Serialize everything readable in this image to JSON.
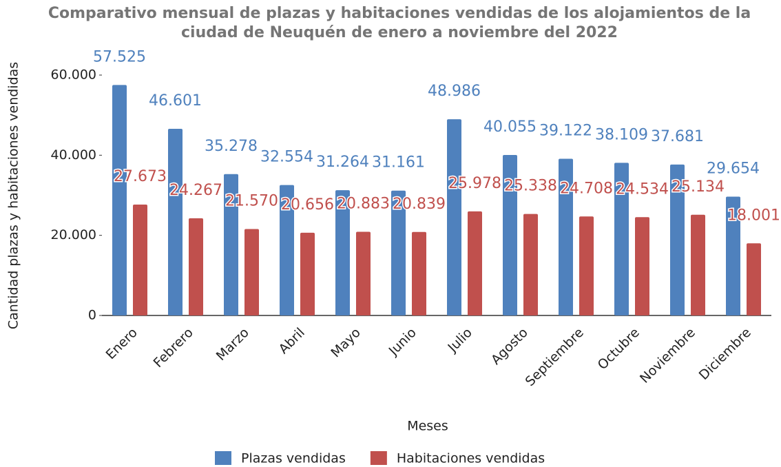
{
  "chart_data": {
    "type": "bar",
    "title": "Comparativo mensual de plazas y habitaciones vendidas de los alojamientos de la ciudad de Neuquén de enero a noviembre del 2022",
    "x_label": "Meses",
    "y_label": "Cantidad plazas y habitaciones vendidas",
    "categories": [
      "Enero",
      "Febrero",
      "Marzo",
      "Abril",
      "Mayo",
      "Junio",
      "Julio",
      "Agosto",
      "Septiembre",
      "Octubre",
      "Noviembre",
      "Diciembre"
    ],
    "series": [
      {
        "name": "Plazas vendidas",
        "color": "#4f81bd",
        "values": [
          57525,
          46601,
          35278,
          32554,
          31264,
          31161,
          48986,
          40055,
          39122,
          38109,
          37681,
          29654
        ],
        "value_labels": [
          "57.525",
          "46.601",
          "35.278",
          "32.554",
          "31.264",
          "31.161",
          "48.986",
          "40.055",
          "39.122",
          "38.109",
          "37.681",
          "29.654"
        ]
      },
      {
        "name": "Habitaciones vendidas",
        "color": "#c0504d",
        "values": [
          27673,
          24267,
          21570,
          20656,
          20883,
          20839,
          25978,
          25338,
          24708,
          24534,
          25134,
          18001
        ],
        "value_labels": [
          "27.673",
          "24.267",
          "21.570",
          "20.656",
          "20.883",
          "20.839",
          "25.978",
          "25.338",
          "24.708",
          "24.534",
          "25.134",
          "18.001"
        ]
      }
    ],
    "ylim": [
      0,
      60000
    ],
    "yticks": [
      0,
      {
        "value": 20000,
        "label": "20.000"
      },
      {
        "value": 40000,
        "label": "40.000"
      },
      {
        "value": 60000,
        "label": "60.000"
      }
    ],
    "grid": false
  }
}
